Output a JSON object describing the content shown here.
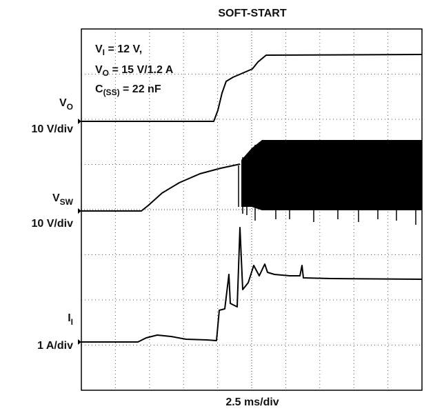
{
  "title": "SOFT-START",
  "x_scale": "2.5 ms/div",
  "annotation": [
    {
      "main": "V",
      "sub": "I",
      "rest": " = 12 V,"
    },
    {
      "main": "V",
      "sub": "O",
      "rest": " = 15 V/1.2 A"
    },
    {
      "main": "C",
      "sub": "(SS)",
      "rest": " = 22 nF"
    }
  ],
  "channels": [
    {
      "main": "V",
      "sub": "O",
      "scale": "10 V/div"
    },
    {
      "main": "V",
      "sub": "SW",
      "scale": "10 V/div"
    },
    {
      "main": "I",
      "sub": "I",
      "scale": "1 A/div"
    }
  ]
}
